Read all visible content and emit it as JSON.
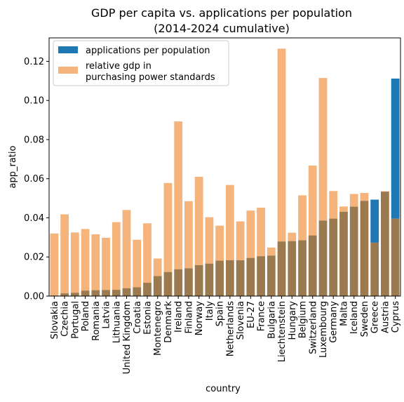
{
  "chart_data": {
    "type": "bar",
    "title": "GDP per capita vs. applications per population",
    "subtitle": "(2014-2024 cumulative)",
    "xlabel": "country",
    "ylabel": "app_ratio",
    "ylim": [
      0,
      0.132
    ],
    "yticks": [
      "0.00",
      "0.02",
      "0.04",
      "0.06",
      "0.08",
      "0.10",
      "0.12"
    ],
    "grid": false,
    "legend_position": "top-left",
    "categories": [
      "Slovakia",
      "Czechia",
      "Portugal",
      "Poland",
      "Romania",
      "Latvia",
      "Lithuania",
      "United Kingdom",
      "Croatia",
      "Estonia",
      "Montenegro",
      "Denmark",
      "Ireland",
      "Finland",
      "Norway",
      "Italy",
      "Spain",
      "Netherlands",
      "Slovenia",
      "EU-27",
      "France",
      "Bulgaria",
      "Liechtenstein",
      "Hungary",
      "Belgium",
      "Switzerland",
      "Luxembourg",
      "Germany",
      "Malta",
      "Iceland",
      "Sweden",
      "Greece",
      "Austria",
      "Cyprus"
    ],
    "series": [
      {
        "name": "applications per population",
        "color": "#1f77b4",
        "values": [
          0.0003,
          0.0014,
          0.0017,
          0.0028,
          0.003,
          0.0031,
          0.0032,
          0.004,
          0.0045,
          0.0068,
          0.0102,
          0.0123,
          0.0137,
          0.0142,
          0.0158,
          0.0166,
          0.0181,
          0.0183,
          0.0183,
          0.0195,
          0.0204,
          0.0207,
          0.0279,
          0.0281,
          0.0285,
          0.031,
          0.0386,
          0.0396,
          0.0431,
          0.0457,
          0.0487,
          0.0493,
          0.0534,
          0.1112
        ]
      },
      {
        "name": "relative gdp in\npurchasing power standards",
        "color": "#f4b47c",
        "values": [
          0.032,
          0.0418,
          0.0325,
          0.0343,
          0.0316,
          0.0298,
          0.0378,
          0.044,
          0.0288,
          0.0372,
          0.0192,
          0.0578,
          0.0893,
          0.0485,
          0.061,
          0.0403,
          0.036,
          0.0568,
          0.0382,
          0.0437,
          0.0452,
          0.0248,
          0.1265,
          0.0324,
          0.0515,
          0.0667,
          0.1115,
          0.0537,
          0.0458,
          0.0522,
          0.0527,
          0.0273,
          0.0536,
          0.0396
        ]
      }
    ],
    "overlap_color": "#9c7a50"
  }
}
